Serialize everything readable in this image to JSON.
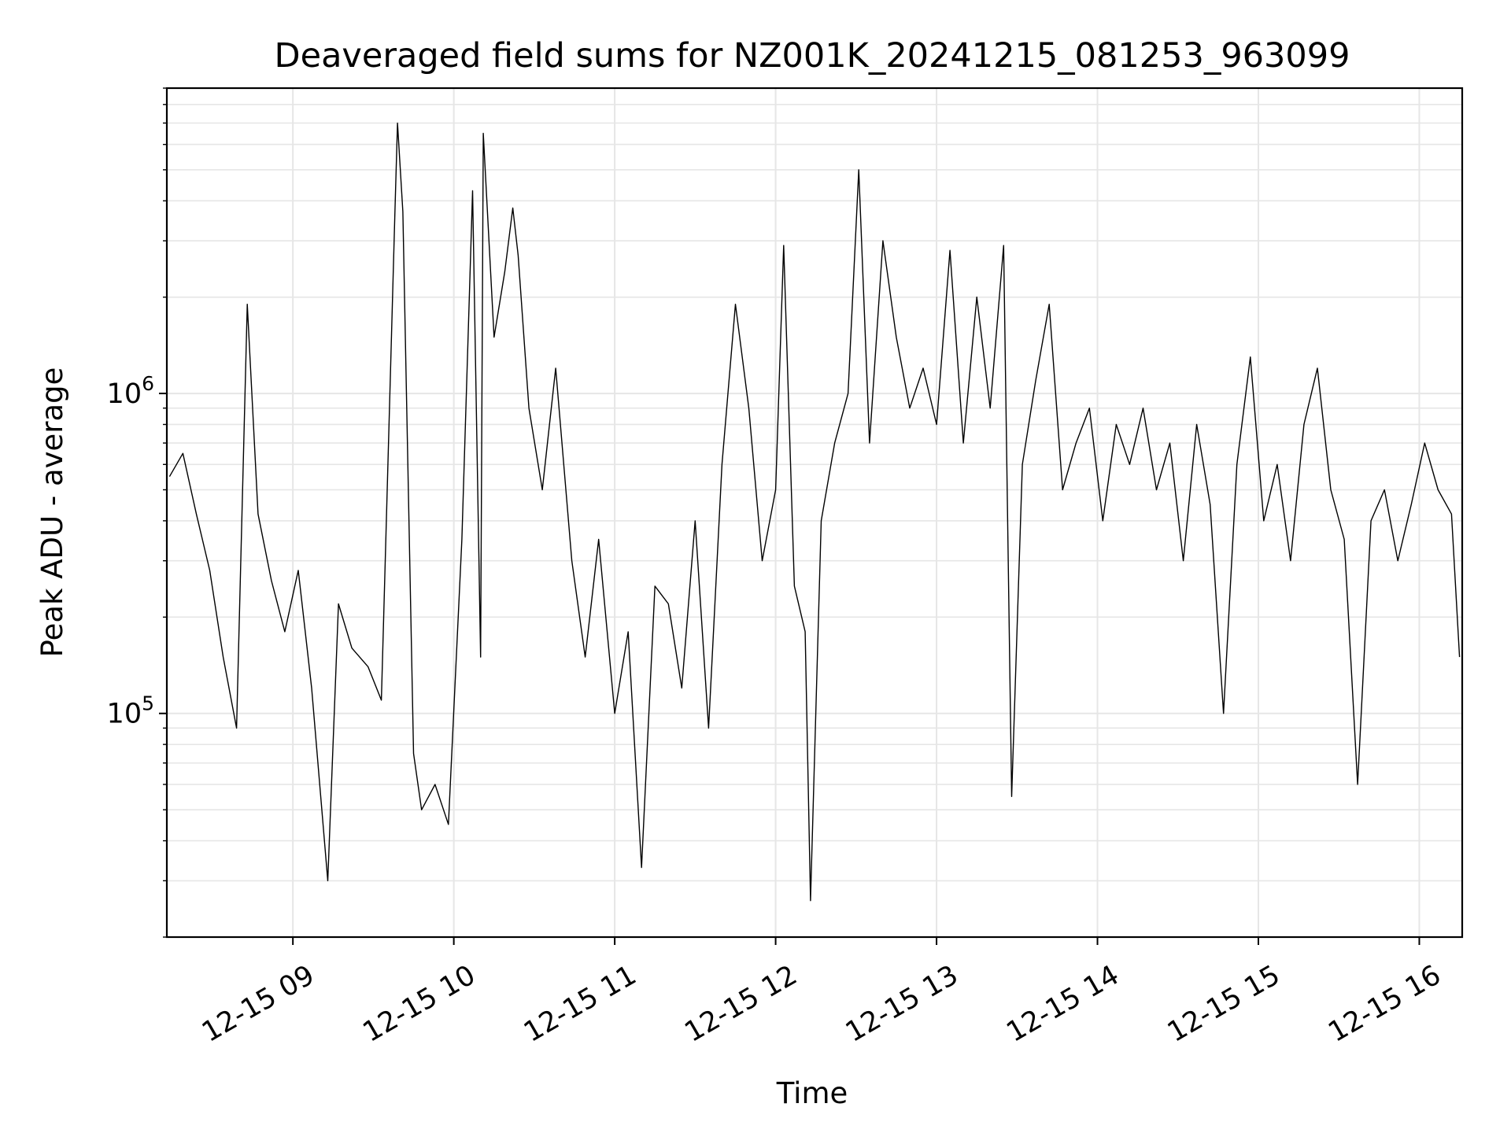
{
  "chart_data": {
    "type": "line",
    "title": "Deaveraged field sums for NZ001K_20241215_081253_963099",
    "xlabel": "Time",
    "ylabel": "Peak ADU - average",
    "yscale": "log",
    "grid": true,
    "legend": "none",
    "line_color": "#000000",
    "grid_color": "#e6e6e6",
    "xlim": [
      "2024-12-15 08:13",
      "2024-12-15 16:16"
    ],
    "ylim": [
      20000,
      9000000
    ],
    "x_ticks": [
      {
        "t": "2024-12-15 09:00",
        "label": "12-15 09"
      },
      {
        "t": "2024-12-15 10:00",
        "label": "12-15 10"
      },
      {
        "t": "2024-12-15 11:00",
        "label": "12-15 11"
      },
      {
        "t": "2024-12-15 12:00",
        "label": "12-15 12"
      },
      {
        "t": "2024-12-15 13:00",
        "label": "12-15 13"
      },
      {
        "t": "2024-12-15 14:00",
        "label": "12-15 14"
      },
      {
        "t": "2024-12-15 15:00",
        "label": "12-15 15"
      },
      {
        "t": "2024-12-15 16:00",
        "label": "12-15 16"
      }
    ],
    "y_ticks": [
      {
        "value": 100000,
        "base": "10",
        "exp": "5"
      },
      {
        "value": 1000000,
        "base": "10",
        "exp": "6"
      }
    ],
    "series": [
      {
        "points": [
          [
            "2024-12-15 08:14",
            550000
          ],
          [
            "2024-12-15 08:19",
            650000
          ],
          [
            "2024-12-15 08:24",
            420000
          ],
          [
            "2024-12-15 08:29",
            280000
          ],
          [
            "2024-12-15 08:34",
            150000
          ],
          [
            "2024-12-15 08:39",
            90000
          ],
          [
            "2024-12-15 08:43",
            1900000
          ],
          [
            "2024-12-15 08:47",
            420000
          ],
          [
            "2024-12-15 08:52",
            260000
          ],
          [
            "2024-12-15 08:57",
            180000
          ],
          [
            "2024-12-15 09:02",
            280000
          ],
          [
            "2024-12-15 09:07",
            120000
          ],
          [
            "2024-12-15 09:13",
            30000
          ],
          [
            "2024-12-15 09:17",
            220000
          ],
          [
            "2024-12-15 09:22",
            160000
          ],
          [
            "2024-12-15 09:28",
            140000
          ],
          [
            "2024-12-15 09:33",
            110000
          ],
          [
            "2024-12-15 09:38",
            3600000
          ],
          [
            "2024-12-15 09:39",
            7000000
          ],
          [
            "2024-12-15 09:41",
            3700000
          ],
          [
            "2024-12-15 09:45",
            75000
          ],
          [
            "2024-12-15 09:48",
            50000
          ],
          [
            "2024-12-15 09:53",
            60000
          ],
          [
            "2024-12-15 09:58",
            45000
          ],
          [
            "2024-12-15 10:03",
            350000
          ],
          [
            "2024-12-15 10:07",
            4300000
          ],
          [
            "2024-12-15 10:10",
            150000
          ],
          [
            "2024-12-15 10:11",
            6500000
          ],
          [
            "2024-12-15 10:15",
            1500000
          ],
          [
            "2024-12-15 10:19",
            2400000
          ],
          [
            "2024-12-15 10:22",
            3800000
          ],
          [
            "2024-12-15 10:24",
            2700000
          ],
          [
            "2024-12-15 10:28",
            900000
          ],
          [
            "2024-12-15 10:33",
            500000
          ],
          [
            "2024-12-15 10:38",
            1200000
          ],
          [
            "2024-12-15 10:44",
            300000
          ],
          [
            "2024-12-15 10:49",
            150000
          ],
          [
            "2024-12-15 10:54",
            350000
          ],
          [
            "2024-12-15 11:00",
            100000
          ],
          [
            "2024-12-15 11:05",
            180000
          ],
          [
            "2024-12-15 11:10",
            33000
          ],
          [
            "2024-12-15 11:15",
            250000
          ],
          [
            "2024-12-15 11:20",
            220000
          ],
          [
            "2024-12-15 11:25",
            120000
          ],
          [
            "2024-12-15 11:30",
            400000
          ],
          [
            "2024-12-15 11:35",
            90000
          ],
          [
            "2024-12-15 11:40",
            600000
          ],
          [
            "2024-12-15 11:45",
            1900000
          ],
          [
            "2024-12-15 11:50",
            900000
          ],
          [
            "2024-12-15 11:55",
            300000
          ],
          [
            "2024-12-15 12:00",
            500000
          ],
          [
            "2024-12-15 12:03",
            2900000
          ],
          [
            "2024-12-15 12:07",
            250000
          ],
          [
            "2024-12-15 12:11",
            180000
          ],
          [
            "2024-12-15 12:13",
            26000
          ],
          [
            "2024-12-15 12:17",
            400000
          ],
          [
            "2024-12-15 12:22",
            700000
          ],
          [
            "2024-12-15 12:27",
            1000000
          ],
          [
            "2024-12-15 12:31",
            5000000
          ],
          [
            "2024-12-15 12:35",
            700000
          ],
          [
            "2024-12-15 12:40",
            3000000
          ],
          [
            "2024-12-15 12:45",
            1500000
          ],
          [
            "2024-12-15 12:50",
            900000
          ],
          [
            "2024-12-15 12:55",
            1200000
          ],
          [
            "2024-12-15 13:00",
            800000
          ],
          [
            "2024-12-15 13:05",
            2800000
          ],
          [
            "2024-12-15 13:10",
            700000
          ],
          [
            "2024-12-15 13:15",
            2000000
          ],
          [
            "2024-12-15 13:20",
            900000
          ],
          [
            "2024-12-15 13:25",
            2900000
          ],
          [
            "2024-12-15 13:28",
            55000
          ],
          [
            "2024-12-15 13:32",
            600000
          ],
          [
            "2024-12-15 13:37",
            1100000
          ],
          [
            "2024-12-15 13:42",
            1900000
          ],
          [
            "2024-12-15 13:47",
            500000
          ],
          [
            "2024-12-15 13:52",
            700000
          ],
          [
            "2024-12-15 13:57",
            900000
          ],
          [
            "2024-12-15 14:02",
            400000
          ],
          [
            "2024-12-15 14:07",
            800000
          ],
          [
            "2024-12-15 14:12",
            600000
          ],
          [
            "2024-12-15 14:17",
            900000
          ],
          [
            "2024-12-15 14:22",
            500000
          ],
          [
            "2024-12-15 14:27",
            700000
          ],
          [
            "2024-12-15 14:32",
            300000
          ],
          [
            "2024-12-15 14:37",
            800000
          ],
          [
            "2024-12-15 14:42",
            450000
          ],
          [
            "2024-12-15 14:47",
            100000
          ],
          [
            "2024-12-15 14:52",
            600000
          ],
          [
            "2024-12-15 14:57",
            1300000
          ],
          [
            "2024-12-15 15:02",
            400000
          ],
          [
            "2024-12-15 15:07",
            600000
          ],
          [
            "2024-12-15 15:12",
            300000
          ],
          [
            "2024-12-15 15:17",
            800000
          ],
          [
            "2024-12-15 15:22",
            1200000
          ],
          [
            "2024-12-15 15:27",
            500000
          ],
          [
            "2024-12-15 15:32",
            350000
          ],
          [
            "2024-12-15 15:37",
            60000
          ],
          [
            "2024-12-15 15:42",
            400000
          ],
          [
            "2024-12-15 15:47",
            500000
          ],
          [
            "2024-12-15 15:52",
            300000
          ],
          [
            "2024-12-15 15:57",
            450000
          ],
          [
            "2024-12-15 16:02",
            700000
          ],
          [
            "2024-12-15 16:07",
            500000
          ],
          [
            "2024-12-15 16:12",
            420000
          ],
          [
            "2024-12-15 16:15",
            150000
          ]
        ]
      }
    ]
  }
}
